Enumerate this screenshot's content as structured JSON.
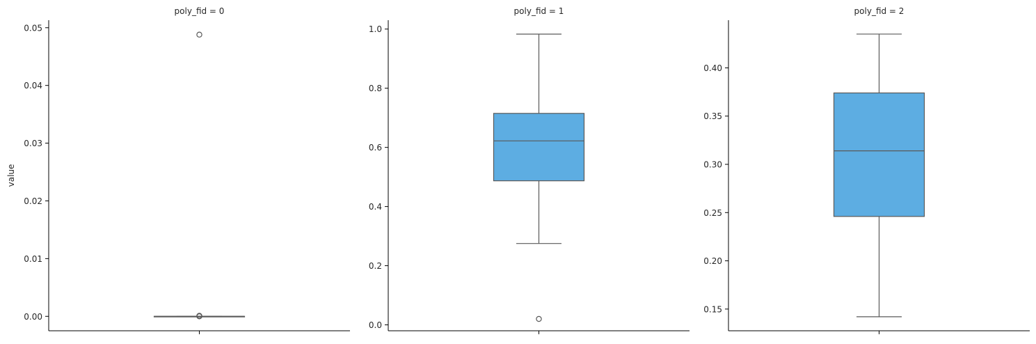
{
  "chart_data": {
    "type": "box",
    "ylabel": "value",
    "box_color": "#5DADE2",
    "line_color": "#595959",
    "panels": [
      {
        "title": "poly_fid = 0",
        "ylim": [
          -0.0025,
          0.0513
        ],
        "yticks": [
          0.0,
          0.01,
          0.02,
          0.03,
          0.04,
          0.05
        ],
        "tick_labels": [
          "0.00",
          "0.01",
          "0.02",
          "0.03",
          "0.04",
          "0.05"
        ],
        "box": {
          "whisker_low": 0.0,
          "q1": 0.0,
          "median": 0.0,
          "q3": 0.0,
          "whisker_high": 0.0
        },
        "outliers": [
          0.0488,
          0.0001,
          5e-05,
          0.0
        ]
      },
      {
        "title": "poly_fid = 1",
        "ylim": [
          -0.02,
          1.03
        ],
        "yticks": [
          0.0,
          0.2,
          0.4,
          0.6,
          0.8,
          1.0
        ],
        "tick_labels": [
          "0.0",
          "0.2",
          "0.4",
          "0.6",
          "0.8",
          "1.0"
        ],
        "box": {
          "whisker_low": 0.275,
          "q1": 0.487,
          "median": 0.622,
          "q3": 0.715,
          "whisker_high": 0.983
        },
        "outliers": [
          0.02
        ]
      },
      {
        "title": "poly_fid = 2",
        "ylim": [
          0.1275,
          0.4494
        ],
        "yticks": [
          0.15,
          0.2,
          0.25,
          0.3,
          0.35,
          0.4
        ],
        "tick_labels": [
          "0.15",
          "0.20",
          "0.25",
          "0.30",
          "0.35",
          "0.40"
        ],
        "box": {
          "whisker_low": 0.142,
          "q1": 0.246,
          "median": 0.314,
          "q3": 0.374,
          "whisker_high": 0.435
        },
        "outliers": []
      }
    ]
  }
}
